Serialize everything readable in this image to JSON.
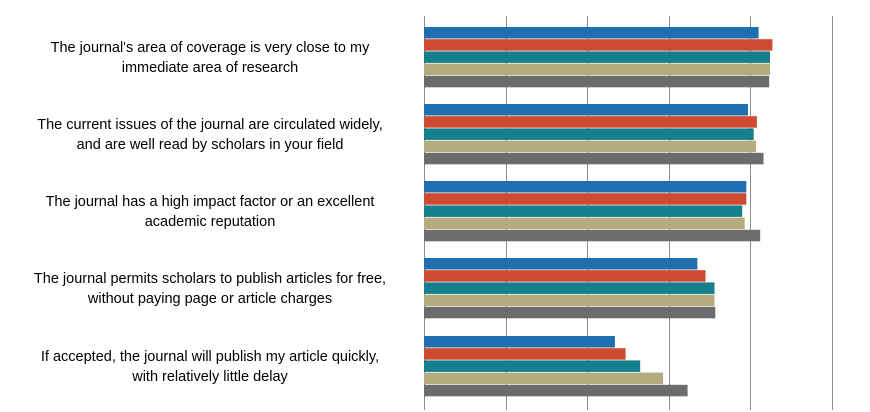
{
  "chart_data": {
    "type": "bar",
    "orientation": "horizontal",
    "categories": [
      [
        "The journal's area of coverage is very close to my",
        "immediate area of research"
      ],
      [
        "The current issues of the journal are circulated widely,",
        "and are well read by scholars in your field"
      ],
      [
        "The journal has a high impact factor or an excellent",
        "academic reputation"
      ],
      [
        "The journal permits scholars to publish articles for free,",
        "without paying page or article charges"
      ],
      [
        "If accepted, the journal will publish my article quickly,",
        "with relatively little delay"
      ]
    ],
    "series": [
      {
        "color": "#1f6fb2",
        "values": [
          4.1,
          3.97,
          3.95,
          3.35,
          2.34
        ]
      },
      {
        "color": "#cf4a31",
        "values": [
          4.27,
          4.08,
          3.95,
          3.45,
          2.47
        ]
      },
      {
        "color": "#167f8c",
        "values": [
          4.24,
          4.04,
          3.9,
          3.56,
          2.65
        ]
      },
      {
        "color": "#b5ab7e",
        "values": [
          4.24,
          4.07,
          3.93,
          3.56,
          2.93
        ]
      },
      {
        "color": "#6c6c6c",
        "values": [
          4.23,
          4.16,
          4.12,
          3.57,
          3.23
        ]
      }
    ],
    "xlim": [
      0,
      5
    ],
    "grid": true,
    "legend": "none",
    "tick_labels_visible": false
  }
}
